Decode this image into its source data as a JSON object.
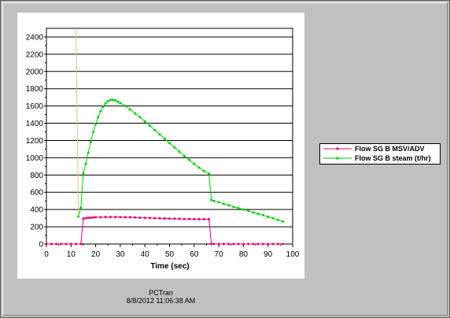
{
  "footer": {
    "app_name": "PCTran",
    "timestamp": "8/8/2012 11:06:38 AM"
  },
  "colors": {
    "window_bg": "#c0c0c0",
    "plot_bg": "#ffffff",
    "grid": "#000000"
  },
  "chart_data": {
    "type": "line",
    "title": "",
    "xlabel": "Time (sec)",
    "ylabel": "",
    "xlim": [
      0,
      100
    ],
    "ylim": [
      0,
      2500
    ],
    "x_ticks": [
      0,
      10,
      20,
      30,
      40,
      50,
      60,
      70,
      80,
      90,
      100
    ],
    "y_ticks": [
      0,
      200,
      400,
      600,
      800,
      1000,
      1200,
      1400,
      1600,
      1800,
      2000,
      2200,
      2400
    ],
    "grid": "horizontal",
    "legend_position": "right",
    "series": [
      {
        "name": "Flow SG B MSV/ADV",
        "color": "#e0006e",
        "marker": "dot",
        "points": [
          [
            0,
            0
          ],
          [
            2,
            0
          ],
          [
            4,
            0
          ],
          [
            6,
            0
          ],
          [
            8,
            0
          ],
          [
            10,
            0
          ],
          [
            12,
            0
          ],
          [
            14,
            0
          ],
          [
            15,
            295
          ],
          [
            16,
            300
          ],
          [
            17,
            305
          ],
          [
            18,
            305
          ],
          [
            19,
            308
          ],
          [
            20,
            310
          ],
          [
            22,
            310
          ],
          [
            24,
            312
          ],
          [
            26,
            313
          ],
          [
            28,
            313
          ],
          [
            30,
            312
          ],
          [
            32,
            310
          ],
          [
            34,
            310
          ],
          [
            36,
            308
          ],
          [
            38,
            305
          ],
          [
            40,
            303
          ],
          [
            42,
            302
          ],
          [
            44,
            300
          ],
          [
            46,
            298
          ],
          [
            48,
            297
          ],
          [
            50,
            295
          ],
          [
            52,
            293
          ],
          [
            54,
            292
          ],
          [
            56,
            290
          ],
          [
            58,
            290
          ],
          [
            60,
            289
          ],
          [
            62,
            288
          ],
          [
            64,
            287
          ],
          [
            66,
            287
          ],
          [
            67,
            0
          ],
          [
            68,
            0
          ],
          [
            70,
            0
          ],
          [
            72,
            0
          ],
          [
            74,
            0
          ],
          [
            76,
            0
          ],
          [
            78,
            0
          ],
          [
            80,
            0
          ],
          [
            82,
            0
          ],
          [
            84,
            0
          ],
          [
            86,
            0
          ],
          [
            88,
            0
          ],
          [
            90,
            0
          ],
          [
            92,
            0
          ],
          [
            94,
            0
          ],
          [
            96,
            0
          ]
        ]
      },
      {
        "name": "Flow SG B steam (t/hr)",
        "color": "#00cc00",
        "marker": "dot",
        "points": [
          [
            13,
            320
          ],
          [
            14,
            420
          ],
          [
            15,
            820
          ],
          [
            16,
            930
          ],
          [
            17,
            1060
          ],
          [
            18,
            1180
          ],
          [
            19,
            1300
          ],
          [
            20,
            1390
          ],
          [
            21,
            1470
          ],
          [
            22,
            1540
          ],
          [
            23,
            1590
          ],
          [
            24,
            1630
          ],
          [
            25,
            1655
          ],
          [
            26,
            1670
          ],
          [
            27,
            1670
          ],
          [
            28,
            1665
          ],
          [
            29,
            1650
          ],
          [
            30,
            1635
          ],
          [
            32,
            1600
          ],
          [
            34,
            1560
          ],
          [
            36,
            1515
          ],
          [
            38,
            1470
          ],
          [
            40,
            1420
          ],
          [
            42,
            1370
          ],
          [
            44,
            1320
          ],
          [
            46,
            1270
          ],
          [
            48,
            1220
          ],
          [
            50,
            1170
          ],
          [
            52,
            1120
          ],
          [
            54,
            1070
          ],
          [
            56,
            1020
          ],
          [
            58,
            975
          ],
          [
            60,
            930
          ],
          [
            62,
            885
          ],
          [
            64,
            845
          ],
          [
            66,
            815
          ],
          [
            67,
            510
          ],
          [
            68,
            500
          ],
          [
            70,
            485
          ],
          [
            72,
            465
          ],
          [
            74,
            450
          ],
          [
            76,
            430
          ],
          [
            78,
            415
          ],
          [
            80,
            400
          ],
          [
            82,
            385
          ],
          [
            84,
            365
          ],
          [
            86,
            350
          ],
          [
            88,
            335
          ],
          [
            90,
            315
          ],
          [
            92,
            300
          ],
          [
            94,
            280
          ],
          [
            96,
            260
          ]
        ]
      },
      {
        "name": "",
        "color": "#e8b8a0",
        "marker": "none",
        "points": [
          [
            12,
            2500
          ],
          [
            13,
            320
          ]
        ]
      }
    ]
  }
}
